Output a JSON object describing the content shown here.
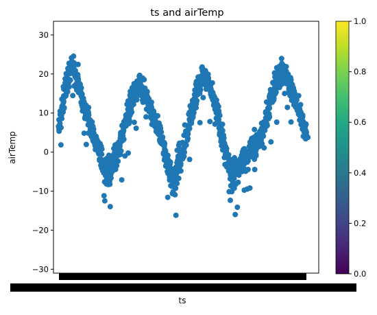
{
  "chart_data": {
    "type": "scatter",
    "title": "ts and airTemp",
    "xlabel": "ts",
    "ylabel": "airTemp",
    "ylim": [
      -31,
      33.5
    ],
    "yticks": [
      30,
      20,
      10,
      0,
      -10,
      -20,
      -30
    ],
    "ytick_labels": [
      "30",
      "20",
      "10",
      "0",
      "−10",
      "−20",
      "−30"
    ],
    "xtick_labels_note": "overlapping timestamp tick labels (illegible)",
    "marker_color": "#1f77b4",
    "colorbar": {
      "colormap": "viridis",
      "range": [
        0.0,
        1.0
      ],
      "ticks": [
        "0.0",
        "0.2",
        "0.4",
        "0.6",
        "0.8",
        "1.0"
      ],
      "tick_values": [
        0.0,
        0.2,
        0.4,
        0.6,
        0.8,
        1.0
      ]
    },
    "series": [
      {
        "values_description": "approx. three annual cycles of air temperature",
        "x_fraction": [
          0.0,
          0.02,
          0.04,
          0.06,
          0.08,
          0.1,
          0.12,
          0.14,
          0.16,
          0.18,
          0.2,
          0.22,
          0.24,
          0.26,
          0.28,
          0.3,
          0.32,
          0.34,
          0.36,
          0.38,
          0.4,
          0.42,
          0.44,
          0.46,
          0.48,
          0.5,
          0.52,
          0.54,
          0.56,
          0.58,
          0.6,
          0.62,
          0.64,
          0.66,
          0.68,
          0.7,
          0.72,
          0.74,
          0.76,
          0.78,
          0.8,
          0.82,
          0.84,
          0.86,
          0.88,
          0.9,
          0.92,
          0.94,
          0.96,
          0.98,
          1.0
        ],
        "y": [
          5,
          14,
          20,
          22,
          17,
          12,
          8,
          4,
          1,
          -4,
          -6,
          -3,
          1,
          6,
          10,
          15,
          18,
          16,
          13,
          9,
          6,
          2,
          -4,
          -7,
          -4,
          1,
          6,
          12,
          17,
          20,
          18,
          14,
          10,
          3,
          -3,
          -7,
          -4,
          -2,
          -1,
          1,
          2,
          5,
          10,
          15,
          19,
          21,
          19,
          16,
          12,
          8,
          4
        ],
        "spread": [
          6,
          7,
          7,
          6,
          6,
          5,
          5,
          5,
          5,
          7,
          8,
          7,
          6,
          6,
          6,
          6,
          6,
          5,
          5,
          5,
          5,
          5,
          6,
          7,
          7,
          6,
          6,
          6,
          6,
          6,
          5,
          5,
          5,
          6,
          7,
          8,
          8,
          7,
          6,
          6,
          6,
          6,
          6,
          6,
          6,
          6,
          6,
          5,
          5,
          5,
          5
        ]
      }
    ]
  }
}
